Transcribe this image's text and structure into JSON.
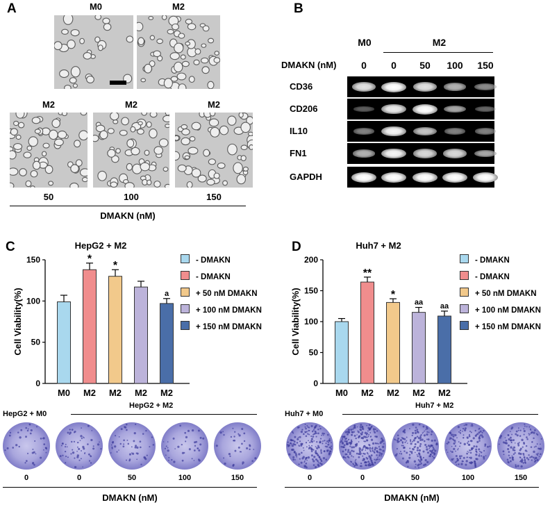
{
  "panels": {
    "a": "A",
    "b": "B",
    "c": "C",
    "d": "D"
  },
  "panel_a": {
    "top_labels": [
      "M0",
      "M2"
    ],
    "bottom_group_labels": [
      "M2",
      "M2",
      "M2"
    ],
    "concentrations": [
      "50",
      "100",
      "150"
    ],
    "axis_label": "DMAKN (nM)"
  },
  "panel_b": {
    "group_m0": "M0",
    "group_m2": "M2",
    "dmakn_label": "DMAKN (nM)",
    "lane_labels": [
      "0",
      "0",
      "50",
      "100",
      "150"
    ],
    "rows": [
      {
        "name": "CD36",
        "intensity": [
          0.85,
          1.0,
          0.85,
          0.6,
          0.4
        ]
      },
      {
        "name": "CD206",
        "intensity": [
          0.15,
          0.9,
          1.0,
          0.55,
          0.2
        ]
      },
      {
        "name": "IL10",
        "intensity": [
          0.35,
          0.95,
          0.7,
          0.35,
          0.35
        ]
      },
      {
        "name": "FN1",
        "intensity": [
          0.6,
          0.95,
          0.8,
          0.8,
          0.55
        ]
      },
      {
        "name": "GAPDH",
        "intensity": [
          1.0,
          1.0,
          1.0,
          1.0,
          1.0
        ]
      }
    ]
  },
  "chart_data": [
    {
      "type": "bar",
      "title": "HepG2 + M2",
      "ylabel": "Cell Viability(%)",
      "ylim": [
        0,
        150
      ],
      "yticks": [
        "0",
        "50",
        "100",
        "150"
      ],
      "categories": [
        "M0",
        "M2",
        "M2",
        "M2",
        "M2"
      ],
      "values": [
        99,
        138,
        130,
        117,
        97
      ],
      "errors": [
        8,
        8,
        8,
        7,
        6
      ],
      "annotations": [
        "",
        "*",
        "*",
        "",
        "a"
      ],
      "colors": [
        "#a9d8ee",
        "#f08d8d",
        "#f2c98b",
        "#bcb3da",
        "#4a6ea8"
      ],
      "legend": [
        "- DMAKN",
        "- DMAKN",
        "+ 50 nM DMAKN",
        "+ 100 nM DMAKN",
        "+ 150 nM DMAKN"
      ]
    },
    {
      "type": "bar",
      "title": "Huh7 + M2",
      "ylabel": "Cell Viability(%)",
      "ylim": [
        0,
        200
      ],
      "yticks": [
        "0",
        "50",
        "100",
        "150",
        "200"
      ],
      "categories": [
        "M0",
        "M2",
        "M2",
        "M2",
        "M2"
      ],
      "values": [
        100,
        164,
        131,
        115,
        109
      ],
      "errors": [
        5,
        8,
        6,
        8,
        8
      ],
      "annotations": [
        "",
        "**",
        "*",
        "aa",
        "aa"
      ],
      "colors": [
        "#a9d8ee",
        "#f08d8d",
        "#f2c98b",
        "#bcb3da",
        "#4a6ea8"
      ],
      "legend": [
        "- DMAKN",
        "- DMAKN",
        "+ 50 nM DMAKN",
        "+ 100 nM DMAKN",
        "+ 150 nM DMAKN"
      ]
    }
  ],
  "colony_c": {
    "m0_label": "HepG2 + M0",
    "m2_label": "HepG2 + M2",
    "concentrations": [
      "0",
      "0",
      "50",
      "100",
      "150"
    ],
    "axis_label": "DMAKN (nM)"
  },
  "colony_d": {
    "m0_label": "Huh7 + M0",
    "m2_label": "Huh7 + M2",
    "concentrations": [
      "0",
      "0",
      "50",
      "100",
      "150"
    ],
    "axis_label": "DMAKN (nM)"
  },
  "colors": {
    "dish_purple": "#3f3d9c",
    "dish_light": "#c9c7ec"
  }
}
